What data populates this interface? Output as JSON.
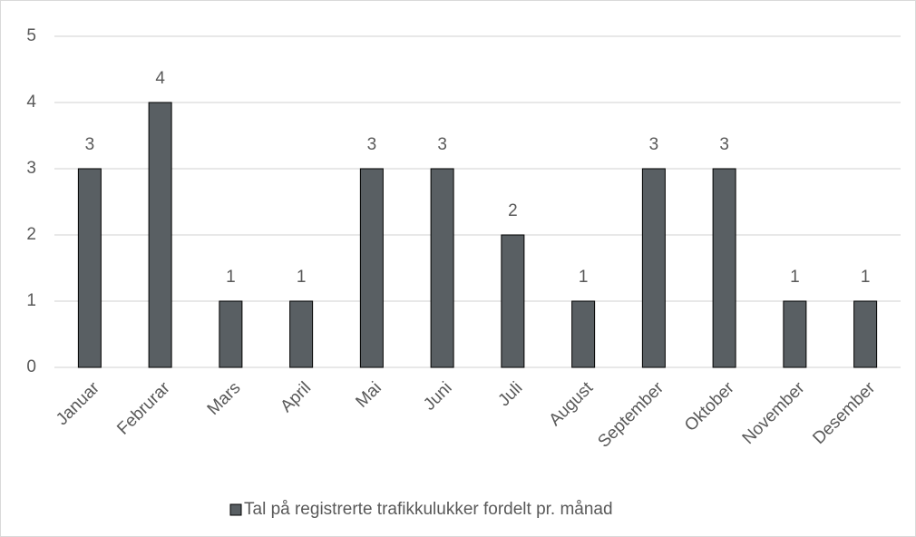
{
  "chart_data": {
    "type": "bar",
    "categories": [
      "Januar",
      "Februrar",
      "Mars",
      "April",
      "Mai",
      "Juni",
      "Juli",
      "August",
      "September",
      "Oktober",
      "November",
      "Desember"
    ],
    "series": [
      {
        "name": "Tal på registrerte trafikkulukker fordelt pr. månad",
        "color": "#595f63",
        "values": [
          3,
          4,
          1,
          1,
          3,
          3,
          2,
          1,
          3,
          3,
          1,
          1
        ]
      }
    ],
    "ylim": [
      0,
      5
    ],
    "yticks": [
      0,
      1,
      2,
      3,
      4,
      5
    ],
    "grid": true,
    "data_labels": true,
    "legend": "bottom"
  }
}
